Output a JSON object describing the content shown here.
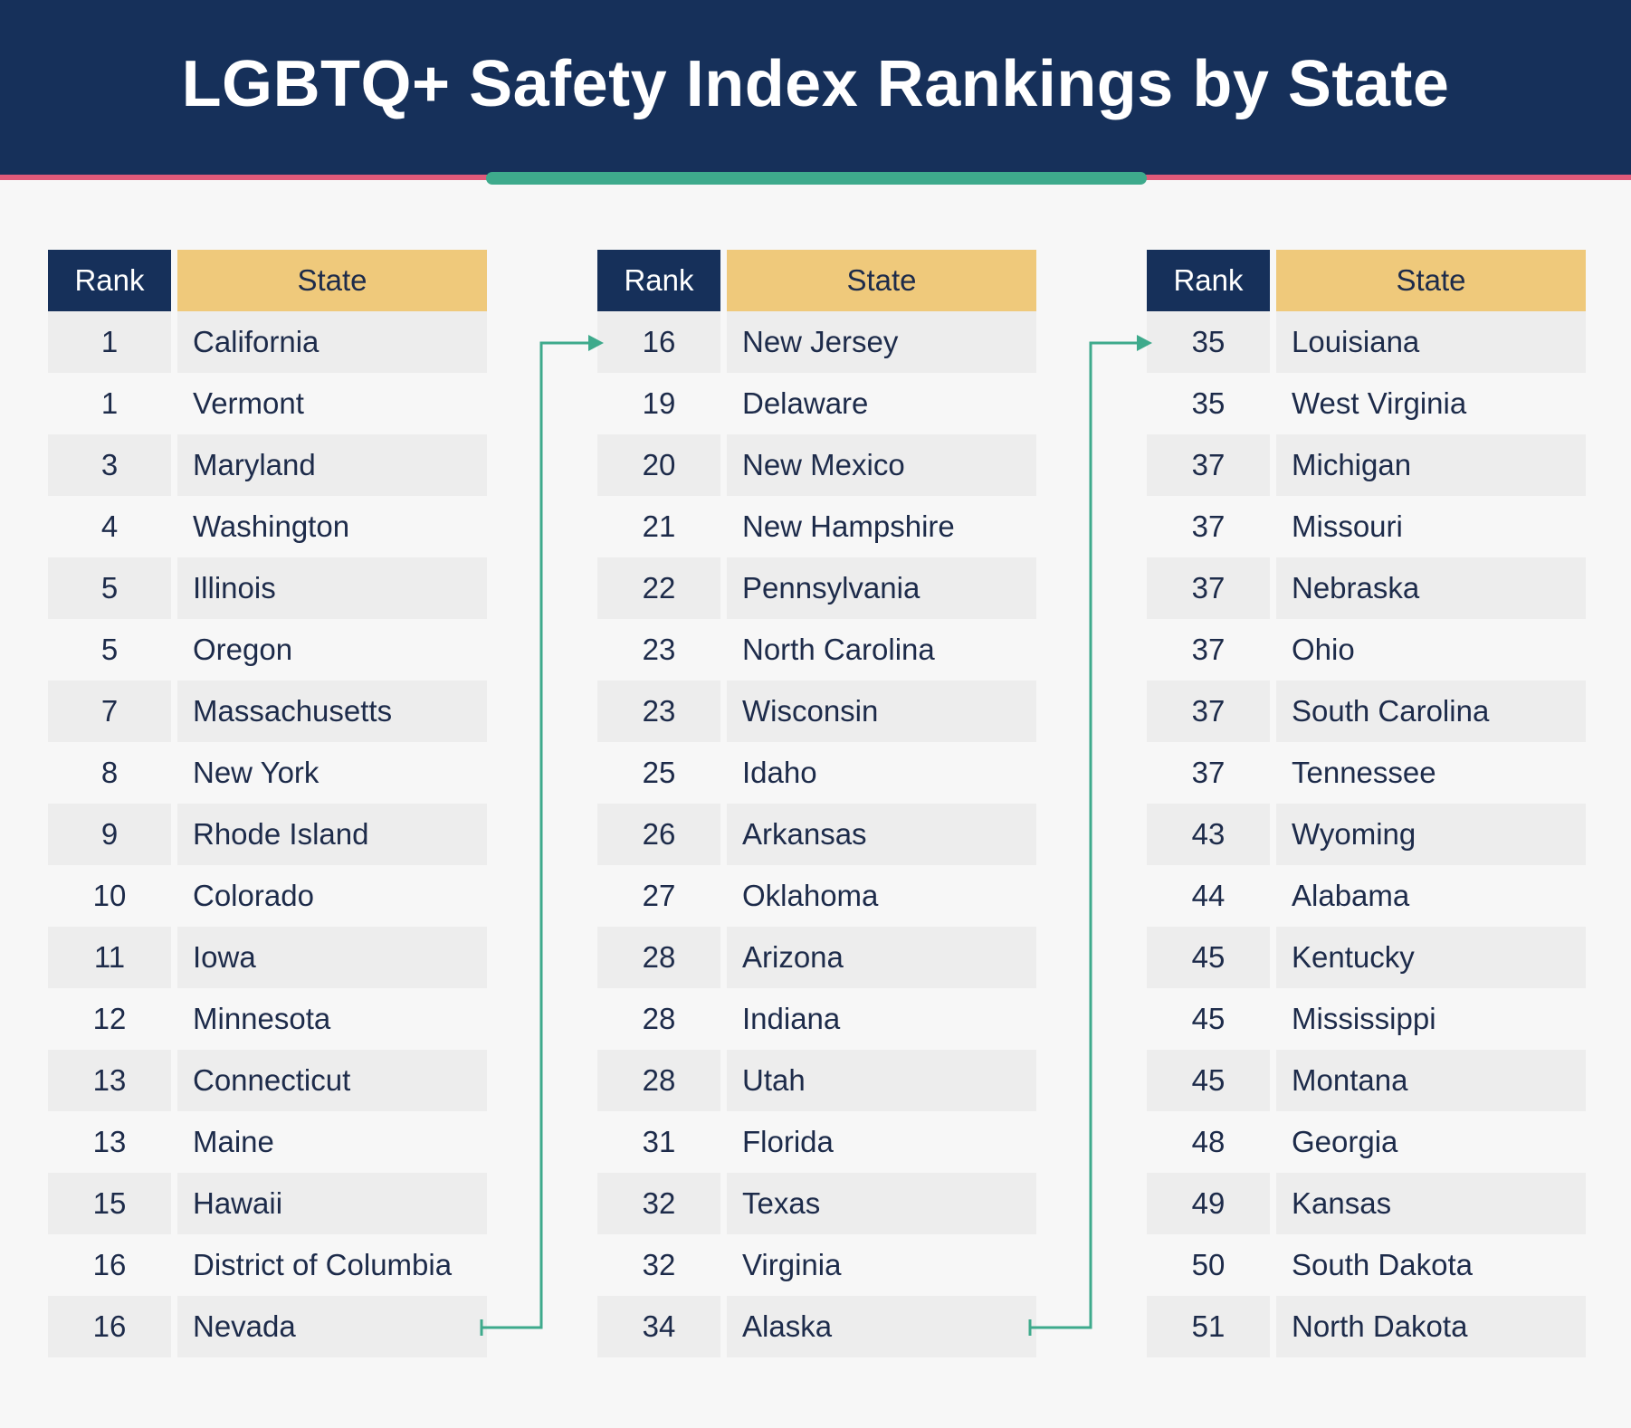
{
  "title": "LGBTQ+ Safety Index Rankings by State",
  "colors": {
    "header_bg": "#16305a",
    "header_stripe": "#e05a7a",
    "accent_bar": "#3eaa8c",
    "state_header_bg": "#efc97b",
    "row_shade": "#ededed",
    "text": "#1d2b4a"
  },
  "chart_data": {
    "type": "table",
    "title": "LGBTQ+ Safety Index Rankings by State",
    "columns": [
      "Rank",
      "State"
    ],
    "tables": [
      {
        "header": {
          "rank": "Rank",
          "state": "State"
        },
        "rows": [
          {
            "rank": "1",
            "state": "California"
          },
          {
            "rank": "1",
            "state": "Vermont"
          },
          {
            "rank": "3",
            "state": "Maryland"
          },
          {
            "rank": "4",
            "state": "Washington"
          },
          {
            "rank": "5",
            "state": "Illinois"
          },
          {
            "rank": "5",
            "state": "Oregon"
          },
          {
            "rank": "7",
            "state": "Massachusetts"
          },
          {
            "rank": "8",
            "state": "New York"
          },
          {
            "rank": "9",
            "state": "Rhode Island"
          },
          {
            "rank": "10",
            "state": "Colorado"
          },
          {
            "rank": "11",
            "state": "Iowa"
          },
          {
            "rank": "12",
            "state": "Minnesota"
          },
          {
            "rank": "13",
            "state": "Connecticut"
          },
          {
            "rank": "13",
            "state": "Maine"
          },
          {
            "rank": "15",
            "state": "Hawaii"
          },
          {
            "rank": "16",
            "state": "District of Columbia"
          },
          {
            "rank": "16",
            "state": "Nevada"
          }
        ]
      },
      {
        "header": {
          "rank": "Rank",
          "state": "State"
        },
        "rows": [
          {
            "rank": "16",
            "state": "New Jersey"
          },
          {
            "rank": "19",
            "state": "Delaware"
          },
          {
            "rank": "20",
            "state": "New Mexico"
          },
          {
            "rank": "21",
            "state": "New Hampshire"
          },
          {
            "rank": "22",
            "state": "Pennsylvania"
          },
          {
            "rank": "23",
            "state": "North Carolina"
          },
          {
            "rank": "23",
            "state": "Wisconsin"
          },
          {
            "rank": "25",
            "state": "Idaho"
          },
          {
            "rank": "26",
            "state": "Arkansas"
          },
          {
            "rank": "27",
            "state": "Oklahoma"
          },
          {
            "rank": "28",
            "state": "Arizona"
          },
          {
            "rank": "28",
            "state": "Indiana"
          },
          {
            "rank": "28",
            "state": "Utah"
          },
          {
            "rank": "31",
            "state": "Florida"
          },
          {
            "rank": "32",
            "state": "Texas"
          },
          {
            "rank": "32",
            "state": "Virginia"
          },
          {
            "rank": "34",
            "state": "Alaska"
          }
        ]
      },
      {
        "header": {
          "rank": "Rank",
          "state": "State"
        },
        "rows": [
          {
            "rank": "35",
            "state": "Louisiana"
          },
          {
            "rank": "35",
            "state": "West Virginia"
          },
          {
            "rank": "37",
            "state": "Michigan"
          },
          {
            "rank": "37",
            "state": "Missouri"
          },
          {
            "rank": "37",
            "state": "Nebraska"
          },
          {
            "rank": "37",
            "state": "Ohio"
          },
          {
            "rank": "37",
            "state": "South Carolina"
          },
          {
            "rank": "37",
            "state": "Tennessee"
          },
          {
            "rank": "43",
            "state": "Wyoming"
          },
          {
            "rank": "44",
            "state": "Alabama"
          },
          {
            "rank": "45",
            "state": "Kentucky"
          },
          {
            "rank": "45",
            "state": "Mississippi"
          },
          {
            "rank": "45",
            "state": "Montana"
          },
          {
            "rank": "48",
            "state": "Georgia"
          },
          {
            "rank": "49",
            "state": "Kansas"
          },
          {
            "rank": "50",
            "state": "South Dakota"
          },
          {
            "rank": "51",
            "state": "North Dakota"
          }
        ]
      }
    ]
  }
}
